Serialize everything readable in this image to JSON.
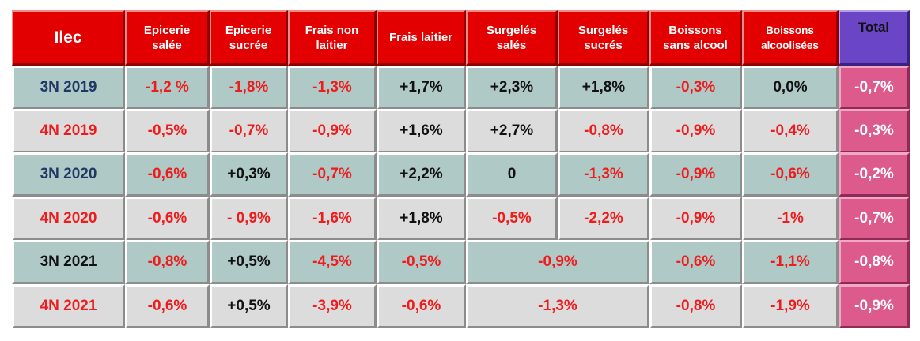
{
  "table": {
    "corner": "Ilec",
    "columns": [
      "Epicerie\nsalée",
      "Epicerie\nsucrée",
      "Frais non\nlaitier",
      "Frais laitier",
      "Surgelés\nsalés",
      "Surgelés\nsucrés",
      "Boissons\nsans alcool",
      "Boissons\nalcoolisées",
      "Total"
    ],
    "rows": [
      {
        "label": "3N 2019",
        "label_color": "navy",
        "shade": "teal",
        "cells": [
          {
            "text": "-1,2 %",
            "color": "red"
          },
          {
            "text": "-1,8%",
            "color": "red"
          },
          {
            "text": "-1,3%",
            "color": "red"
          },
          {
            "text": "+1,7%",
            "color": "black"
          },
          {
            "text": "+2,3%",
            "color": "black"
          },
          {
            "text": "+1,8%",
            "color": "black"
          },
          {
            "text": "-0,3%",
            "color": "red"
          },
          {
            "text": "0,0%",
            "color": "black"
          },
          {
            "text": "-0,7%",
            "color": "white"
          }
        ]
      },
      {
        "label": "4N 2019",
        "label_color": "red",
        "shade": "gray",
        "cells": [
          {
            "text": "-0,5%",
            "color": "red"
          },
          {
            "text": "-0,7%",
            "color": "red"
          },
          {
            "text": "-0,9%",
            "color": "red"
          },
          {
            "text": "+1,6%",
            "color": "black"
          },
          {
            "text": "+2,7%",
            "color": "black"
          },
          {
            "text": "-0,8%",
            "color": "red"
          },
          {
            "text": "-0,9%",
            "color": "red"
          },
          {
            "text": "-0,4%",
            "color": "red"
          },
          {
            "text": "-0,3%",
            "color": "white"
          }
        ]
      },
      {
        "label": "3N 2020",
        "label_color": "navy",
        "shade": "teal",
        "cells": [
          {
            "text": "-0,6%",
            "color": "red"
          },
          {
            "text": "+0,3%",
            "color": "black"
          },
          {
            "text": "-0,7%",
            "color": "red"
          },
          {
            "text": "+2,2%",
            "color": "black"
          },
          {
            "text": "0",
            "color": "black"
          },
          {
            "text": "-1,3%",
            "color": "red"
          },
          {
            "text": "-0,9%",
            "color": "red"
          },
          {
            "text": "-0,6%",
            "color": "red"
          },
          {
            "text": "-0,2%",
            "color": "white"
          }
        ]
      },
      {
        "label": "4N 2020",
        "label_color": "red",
        "shade": "gray",
        "cells": [
          {
            "text": "-0,6%",
            "color": "red"
          },
          {
            "text": "- 0,9%",
            "color": "red"
          },
          {
            "text": "-1,6%",
            "color": "red"
          },
          {
            "text": "+1,8%",
            "color": "black"
          },
          {
            "text": "-0,5%",
            "color": "red"
          },
          {
            "text": "-2,2%",
            "color": "red"
          },
          {
            "text": "-0,9%",
            "color": "red"
          },
          {
            "text": "-1%",
            "color": "red"
          },
          {
            "text": "-0,7%",
            "color": "white"
          }
        ]
      },
      {
        "label": "3N 2021",
        "label_color": "black",
        "shade": "teal",
        "cells": [
          {
            "text": "-0,8%",
            "color": "red"
          },
          {
            "text": "+0,5%",
            "color": "black"
          },
          {
            "text": "-4,5%",
            "color": "red"
          },
          {
            "text": "-0,5%",
            "color": "red"
          },
          {
            "text": "-0,9%",
            "color": "red",
            "span": 2
          },
          {
            "text": "-0,6%",
            "color": "red"
          },
          {
            "text": "-1,1%",
            "color": "red"
          },
          {
            "text": "-0,8%",
            "color": "white"
          }
        ]
      },
      {
        "label": "4N 2021",
        "label_color": "red",
        "shade": "gray",
        "cells": [
          {
            "text": "-0,6%",
            "color": "red"
          },
          {
            "text": "+0,5%",
            "color": "black"
          },
          {
            "text": "-3,9%",
            "color": "red"
          },
          {
            "text": "-0,6%",
            "color": "red"
          },
          {
            "text": "-1,3%",
            "color": "red",
            "span": 2
          },
          {
            "text": "-0,8%",
            "color": "red"
          },
          {
            "text": "-1,9%",
            "color": "red"
          },
          {
            "text": "-0,9%",
            "color": "white"
          }
        ]
      }
    ]
  },
  "colors": {
    "header_red": "#e20000",
    "total_header_purple": "#6a45c6",
    "row_teal": "#afc9c6",
    "row_gray": "#dcdcdc",
    "total_pink": "#dd5a8d",
    "value_red": "#ee1c1c",
    "value_black": "#111111",
    "label_navy": "#1f3864"
  }
}
